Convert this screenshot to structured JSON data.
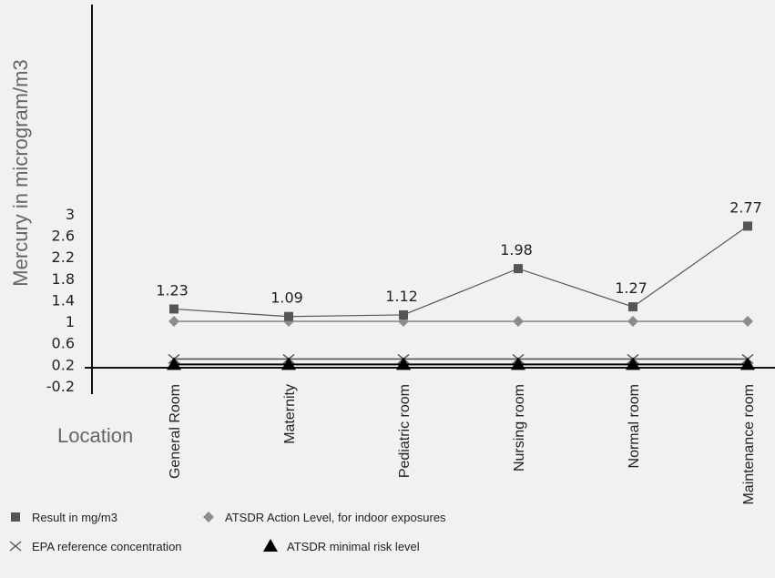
{
  "chart_data": {
    "type": "line",
    "title": "",
    "xlabel": "Location",
    "ylabel": "Mercury in microgram/m3",
    "categories": [
      "General Room",
      "Maternity",
      "Pediatric room",
      "Nursing room",
      "Normal room",
      "Maintenance room"
    ],
    "y_ticks": [
      "-0.2",
      "0.2",
      "0.6",
      "1",
      "1.4",
      "1.8",
      "2.2",
      "2.6",
      "3"
    ],
    "ylim": [
      -0.2,
      3.4
    ],
    "grid": false,
    "legend_position": "bottom",
    "series": [
      {
        "name": "Result in mg/m3",
        "marker": "square",
        "color": "#555555",
        "values": [
          1.23,
          1.09,
          1.12,
          1.98,
          1.27,
          2.77
        ],
        "data_labels": [
          "1.23",
          "1.09",
          "1.12",
          "1.98",
          "1.27",
          "2.77"
        ]
      },
      {
        "name": "ATSDR Action Level, for indoor exposures",
        "marker": "diamond",
        "color": "#8c8c8c",
        "values": [
          1,
          1,
          1,
          1,
          1,
          1
        ]
      },
      {
        "name": "EPA reference concentration",
        "marker": "x",
        "color": "#555555",
        "values": [
          0.3,
          0.3,
          0.3,
          0.3,
          0.3,
          0.3
        ]
      },
      {
        "name": "ATSDR minimal risk level",
        "marker": "triangle",
        "color": "#000000",
        "values": [
          0.2,
          0.2,
          0.2,
          0.2,
          0.2,
          0.2
        ]
      }
    ]
  }
}
